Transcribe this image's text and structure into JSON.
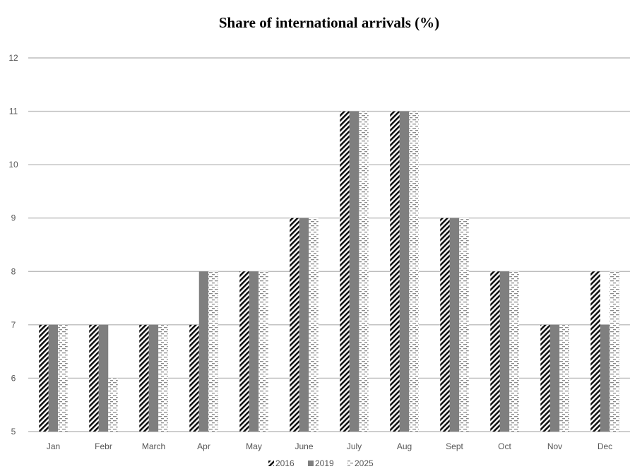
{
  "chart_data": {
    "type": "bar",
    "title": "Share of international arrivals (%)",
    "xlabel": "",
    "ylabel": "",
    "categories": [
      "Jan",
      "Febr",
      "March",
      "Apr",
      "May",
      "June",
      "July",
      "Aug",
      "Sept",
      "Oct",
      "Nov",
      "Dec"
    ],
    "series": [
      {
        "name": "2016",
        "values": [
          7,
          7,
          7,
          7,
          8,
          9,
          11,
          11,
          9,
          8,
          7,
          8
        ],
        "pattern": "diagonal-hatch",
        "color": "#111111"
      },
      {
        "name": "2019",
        "values": [
          7,
          7,
          7,
          8,
          8,
          9,
          11,
          11,
          9,
          8,
          7,
          7
        ],
        "pattern": "solid",
        "color": "#7f7f7f"
      },
      {
        "name": "2025",
        "values": [
          7,
          6,
          7,
          8,
          8,
          9,
          11,
          11,
          9,
          8,
          7,
          8
        ],
        "pattern": "dashed-dots",
        "color": "#999999"
      }
    ],
    "ylim": [
      5,
      12
    ],
    "yticks": [
      5,
      6,
      7,
      8,
      9,
      10,
      11,
      12
    ],
    "grid": true,
    "legend": "bottom-center"
  }
}
